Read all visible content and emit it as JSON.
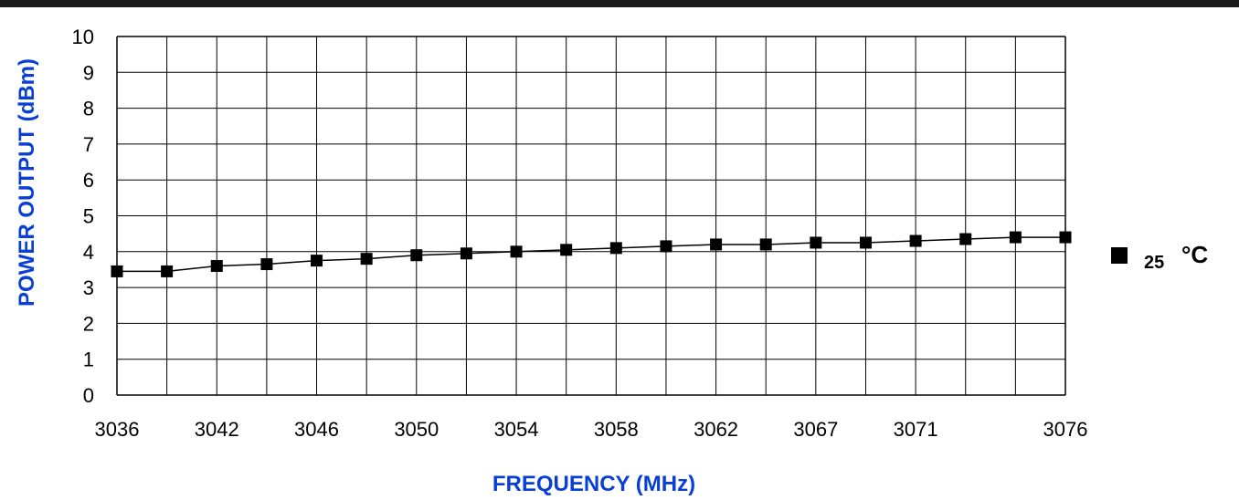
{
  "chart_data": {
    "type": "line",
    "title": "",
    "xlabel": "FREQUENCY (MHz)",
    "ylabel": "POWER OUTPUT (dBm)",
    "ylim": [
      0,
      10
    ],
    "yticks": [
      "0",
      "1",
      "2",
      "3",
      "4",
      "5",
      "6",
      "7",
      "8",
      "9",
      "10"
    ],
    "xticks": [
      "3036",
      "3042",
      "3046",
      "3050",
      "3054",
      "3058",
      "3062",
      "3067",
      "3071",
      "3076"
    ],
    "grid": true,
    "legend_position": "right",
    "x": [
      3036,
      3038,
      3040,
      3042,
      3044,
      3046,
      3048,
      3050,
      3052,
      3054,
      3056,
      3058,
      3060,
      3062,
      3064,
      3066,
      3068,
      3070,
      3072,
      3076
    ],
    "series": [
      {
        "name": "25",
        "values": [
          3.45,
          3.45,
          3.6,
          3.65,
          3.75,
          3.8,
          3.9,
          3.95,
          4.0,
          4.05,
          4.1,
          4.15,
          4.2,
          4.2,
          4.25,
          4.25,
          4.3,
          4.35,
          4.4,
          4.4
        ]
      }
    ],
    "legend": {
      "label": "25",
      "unit": "°C"
    },
    "colors": {
      "axis_title": "#0a3fd6",
      "line": "#000000",
      "grid": "#000000",
      "top_bar": "#1a1a1a"
    }
  }
}
